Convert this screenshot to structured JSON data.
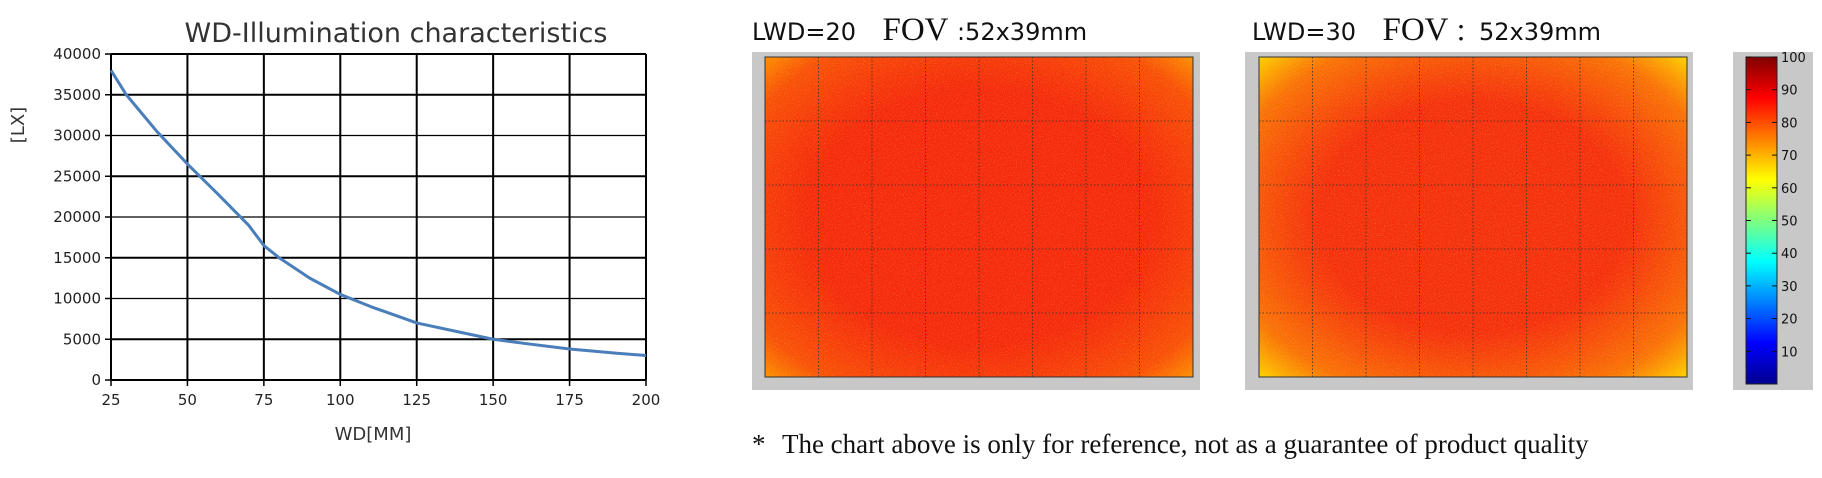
{
  "chart_data": [
    {
      "type": "line",
      "title": "WD-Illumination characteristics",
      "xlabel": "WD[MM]",
      "ylabel": "[LX]",
      "xlim": [
        25,
        200
      ],
      "ylim": [
        0,
        40000
      ],
      "xticks": [
        25,
        50,
        75,
        100,
        125,
        150,
        175,
        200
      ],
      "yticks": [
        0,
        5000,
        10000,
        15000,
        20000,
        25000,
        30000,
        35000,
        40000
      ],
      "grid": true,
      "series": [
        {
          "color": "#4a7ebb",
          "x": [
            25,
            30,
            40,
            50,
            60,
            70,
            75,
            80,
            90,
            100,
            110,
            125,
            140,
            150,
            160,
            175,
            190,
            200
          ],
          "y": [
            38000,
            35000,
            30500,
            26500,
            22800,
            19000,
            16500,
            15000,
            12500,
            10500,
            9000,
            7000,
            5800,
            5000,
            4500,
            3800,
            3300,
            3000
          ]
        }
      ]
    },
    {
      "type": "heatmap",
      "label_lwd": "LWD=20",
      "label_fov": "FOV",
      "label_dims": ":52x39mm",
      "dominant_color": "#f52a0e",
      "corner_color": "#ffb000"
    },
    {
      "type": "heatmap",
      "label_lwd": "LWD=30",
      "label_fov": "FOV",
      "label_dims": "：52x39mm",
      "dominant_color": "#f5300f",
      "corner_color": "#ffe000"
    },
    {
      "type": "colorbar",
      "ticks": [
        10,
        20,
        30,
        40,
        50,
        60,
        70,
        80,
        90,
        100
      ],
      "range": [
        0,
        100
      ],
      "colormap": "jet"
    }
  ],
  "footnote": {
    "symbol": "*",
    "text": "The chart above is only for reference, not as a guarantee of product quality"
  }
}
